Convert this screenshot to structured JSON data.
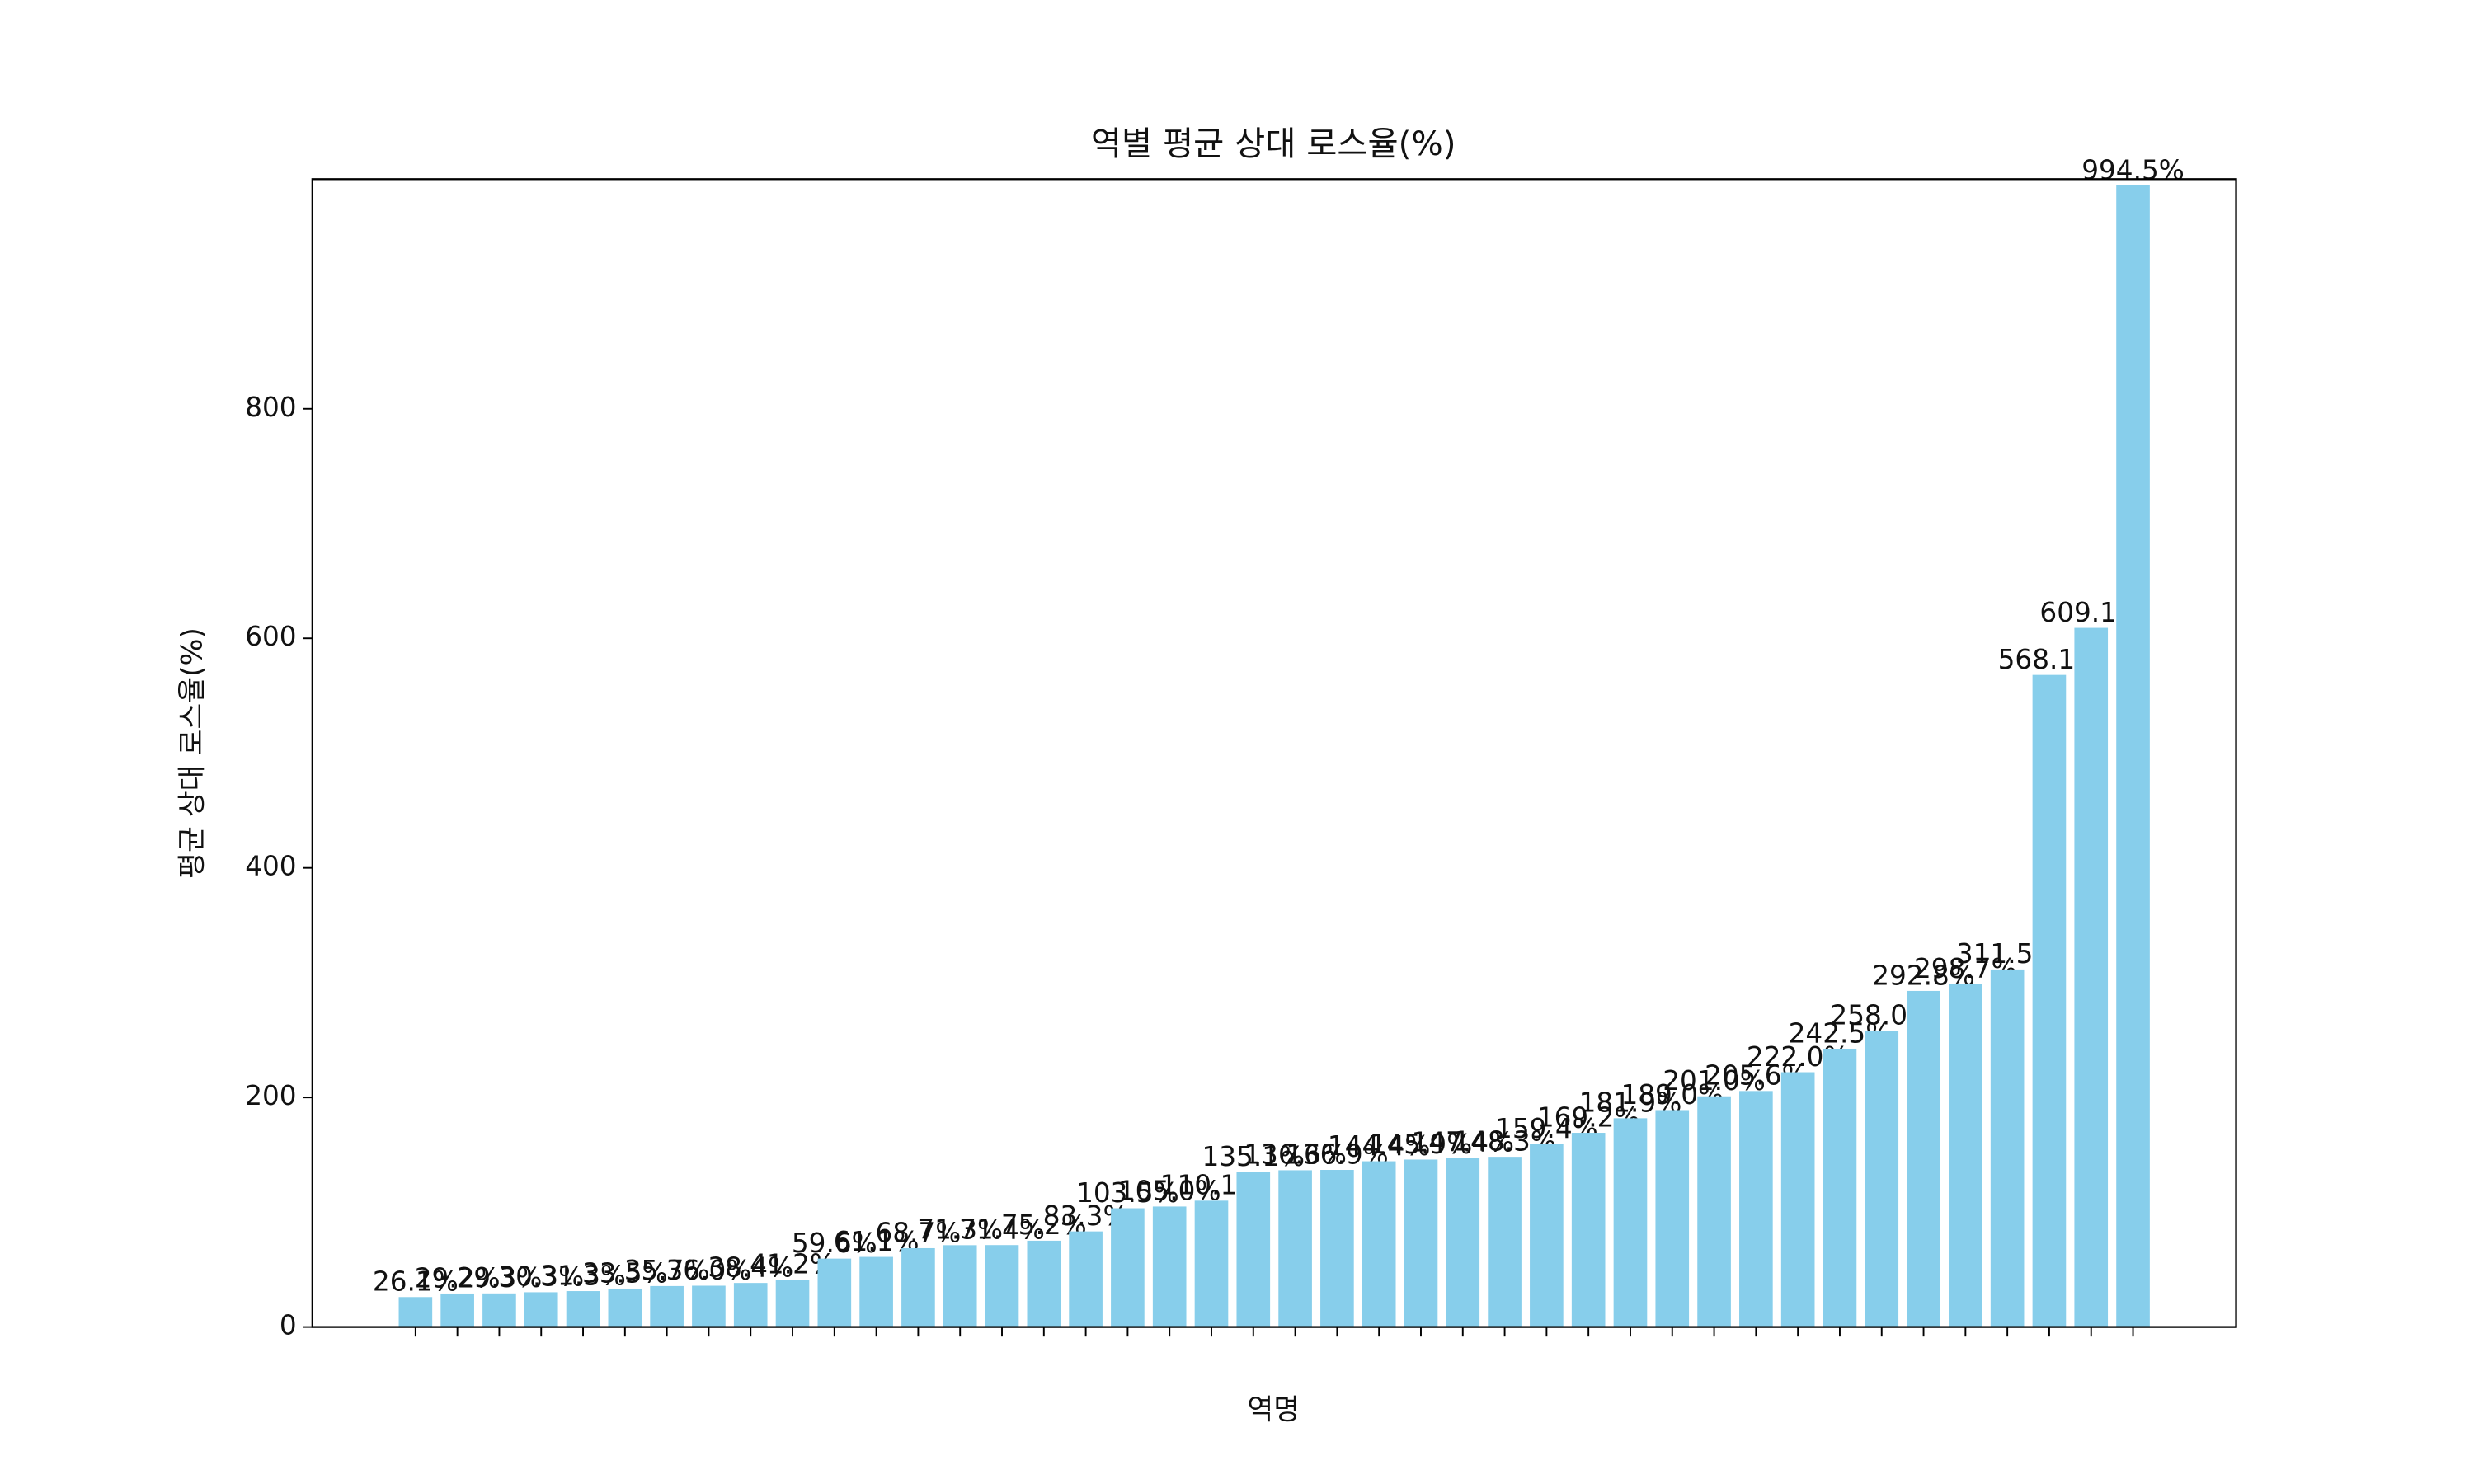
{
  "chart_data": {
    "type": "bar",
    "title": "역별 평균 상대 로스율(%)",
    "xlabel": "역명",
    "ylabel": "평균 상대 로스율(%)",
    "categories": [
      null,
      null,
      null,
      null,
      null,
      null,
      null,
      null,
      null,
      null,
      null,
      null,
      null,
      null,
      null,
      null,
      null,
      null,
      null,
      null,
      null,
      null,
      null,
      null,
      null,
      null,
      null,
      null,
      null,
      null,
      null,
      null,
      null,
      null,
      null,
      null,
      null,
      null,
      null,
      null,
      null,
      null
    ],
    "values": [
      26.1,
      29.2,
      29.3,
      30.3,
      31.3,
      33.5,
      35.7,
      36.0,
      38.4,
      41.2,
      59.6,
      61.1,
      68.7,
      71.3,
      71.4,
      75.2,
      83.3,
      103.5,
      105.0,
      110.1,
      135.1,
      136.6,
      136.9,
      144.4,
      145.9,
      147.4,
      148.3,
      159.4,
      169.2,
      181.9,
      189.0,
      201.0,
      205.6,
      222.0,
      242.5,
      258.0,
      292.8,
      298.7,
      311.5,
      568.1,
      609.1,
      994.5
    ],
    "value_labels": [
      "26.1%",
      "29.2%",
      "29.3%",
      "30.3%",
      "31.3%",
      "33.5%",
      "35.7%",
      "36.0%",
      "38.4%",
      "41.2%",
      "59.6%",
      "61.1%",
      "68.7%",
      "71.3%",
      "71.4%",
      "75.2%",
      "83.3%",
      "103.5%",
      "105.0%",
      "110.1%",
      "135.1%",
      "136.6%",
      "136.9%",
      "144.4%",
      "145.9%",
      "147.4%",
      "148.3%",
      "159.4%",
      "169.2%",
      "181.9%",
      "189.0%",
      "201.0%",
      "205.6%",
      "222.0%",
      "242.5%",
      "258.0%",
      "292.8%",
      "298.7%",
      "311.5%",
      "568.1%",
      "609.1%",
      "994.5%"
    ],
    "color": "#87ceeb",
    "ylim": [
      0,
      1000
    ],
    "yticks": [
      0,
      200,
      400,
      600,
      800
    ],
    "grid": false
  }
}
